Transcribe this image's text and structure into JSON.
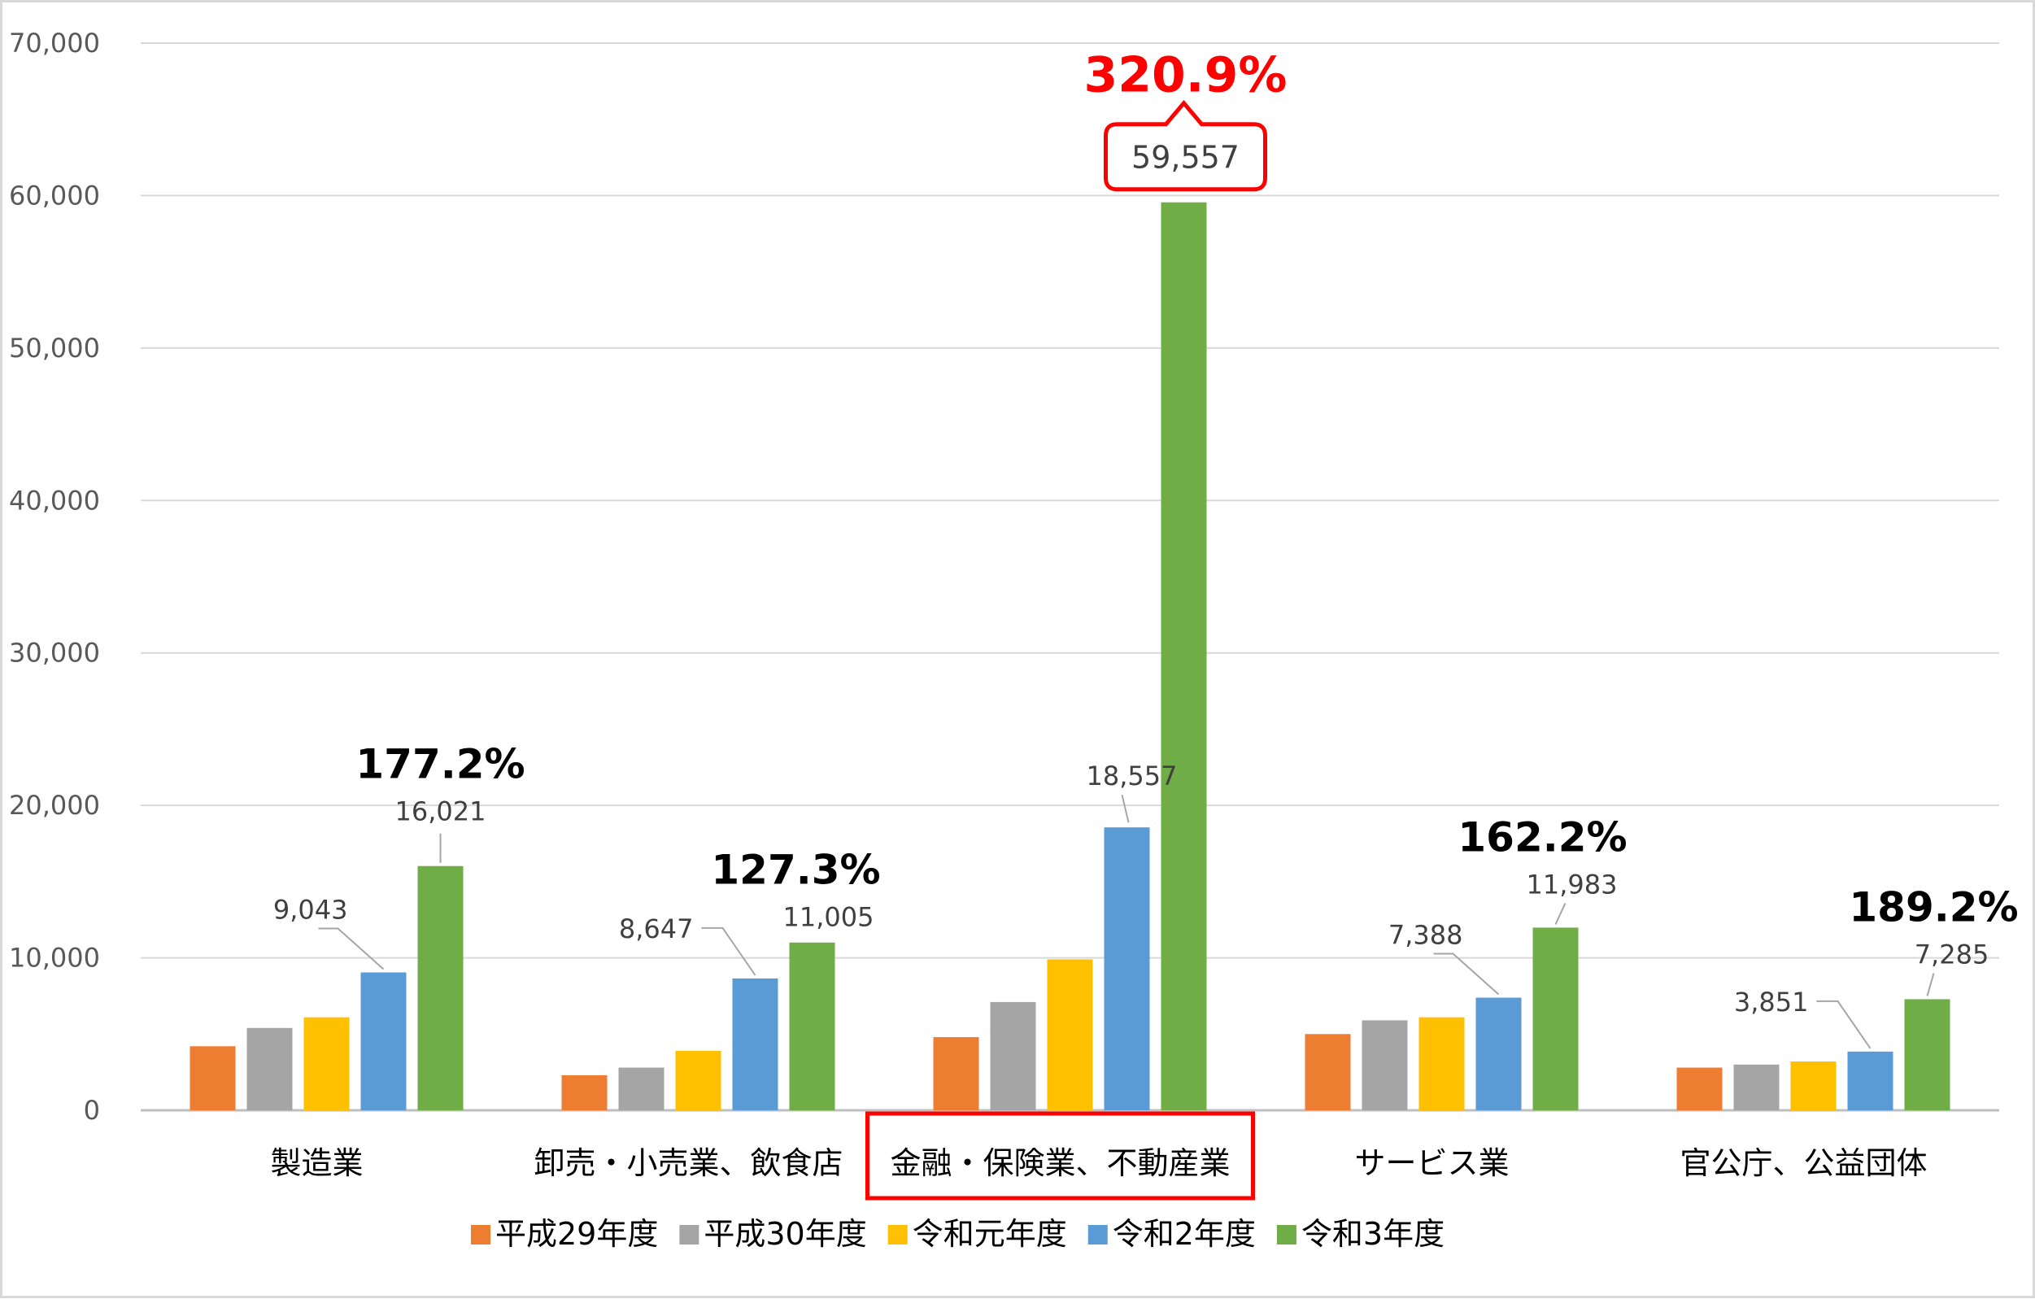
{
  "chart_data": {
    "type": "bar",
    "categories": [
      "製造業",
      "卸売・小売業、飲食店",
      "金融・保険業、不動産業",
      "サービス業",
      "官公庁、公益団体"
    ],
    "series": [
      {
        "name": "平成29年度",
        "color": "#ed7d31",
        "values": [
          4200,
          2300,
          4800,
          5000,
          2800
        ]
      },
      {
        "name": "平成30年度",
        "color": "#a5a5a5",
        "values": [
          5400,
          2800,
          7100,
          5900,
          3000
        ]
      },
      {
        "name": "令和元年度",
        "color": "#ffc000",
        "values": [
          6100,
          3900,
          9900,
          6100,
          3200
        ]
      },
      {
        "name": "令和2年度",
        "color": "#5b9bd5",
        "values": [
          9043,
          8647,
          18557,
          7388,
          3851
        ]
      },
      {
        "name": "令和3年度",
        "color": "#70ad47",
        "values": [
          16021,
          11005,
          59557,
          11983,
          7285
        ]
      }
    ],
    "value_labels": {
      "令和2年度": [
        "9,043",
        "8,647",
        "18,557",
        "7,388",
        "3,851"
      ],
      "令和3年度": [
        "16,021",
        "11,005",
        "59,557",
        "11,983",
        "7,285"
      ]
    },
    "growth_rates": [
      "177.2%",
      "127.3%",
      "320.9%",
      "162.2%",
      "189.2%"
    ],
    "highlight_category": "金融・保険業、不動産業",
    "highlight_color": "#ff0000",
    "ylim": [
      0,
      70000
    ],
    "yticks": [
      0,
      10000,
      20000,
      30000,
      40000,
      50000,
      60000,
      70000
    ],
    "ytick_labels": [
      "0",
      "10,000",
      "20,000",
      "30,000",
      "40,000",
      "50,000",
      "60,000",
      "70,000"
    ],
    "grid": true,
    "legend_position": "bottom",
    "title": "",
    "xlabel": "",
    "ylabel": ""
  }
}
